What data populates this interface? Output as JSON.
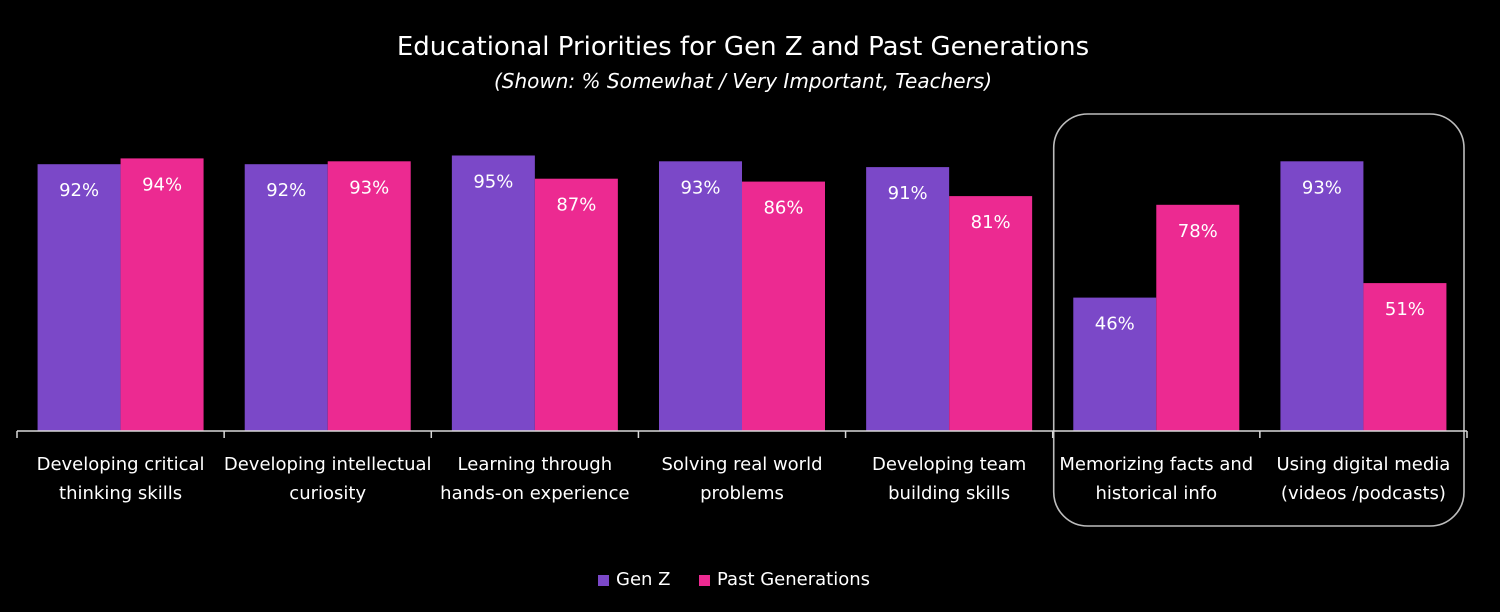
{
  "chart_data": {
    "type": "bar",
    "title": "Educational Priorities for Gen Z and Past Generations",
    "subtitle": "(Shown: % Somewhat / Very Important, Teachers)",
    "categories": [
      [
        "Developing critical",
        "thinking skills"
      ],
      [
        "Developing intellectual",
        "curiosity"
      ],
      [
        "Learning through",
        "hands-on experience"
      ],
      [
        "Solving real world",
        "problems"
      ],
      [
        "Developing team",
        "building skills"
      ],
      [
        "Memorizing facts and",
        "historical info"
      ],
      [
        "Using digital media",
        "(videos /podcasts)"
      ]
    ],
    "series": [
      {
        "name": "Gen Z",
        "color": "#7b48c8",
        "values": [
          92,
          92,
          95,
          93,
          91,
          46,
          93
        ],
        "labels": [
          "92%",
          "92%",
          "95%",
          "93%",
          "91%",
          "46%",
          "93%"
        ]
      },
      {
        "name": "Past Generations",
        "color": "#ec2a91",
        "values": [
          94,
          93,
          87,
          86,
          81,
          78,
          51
        ],
        "labels": [
          "94%",
          "93%",
          "87%",
          "86%",
          "81%",
          "78%",
          "51%"
        ]
      }
    ],
    "highlighted_categories": [
      5,
      6
    ],
    "ylim": [
      0,
      100
    ],
    "grid": false,
    "legend_position": "bottom-center"
  }
}
